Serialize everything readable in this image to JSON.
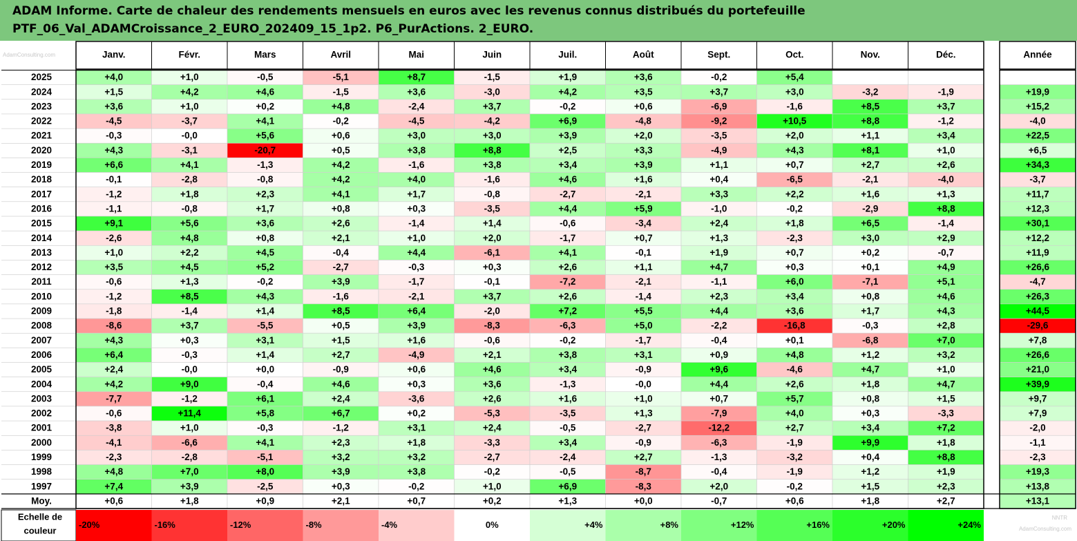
{
  "title": {
    "line1": "ADAM Informe. Carte de chaleur des rendements mensuels en euros avec les revenus connus distribués du portefeuille",
    "line2": "PTF_06_Val_ADAMCroissance_2_EURO_202409_15_1p2. P6_PurActions. 2_EURO."
  },
  "colors": {
    "title_bg": "#7dc77d",
    "negative_max": "#ff0000",
    "positive_max": "#00ff00",
    "neutral": "#ffffff"
  },
  "watermark": {
    "top_left": "AdamConsulting.com",
    "bottom_right_1": "NNTR",
    "bottom_right_2": "AdamConsulting.com"
  },
  "chart_data": {
    "type": "heatmap",
    "title": "ADAM Informe. Carte de chaleur des rendements mensuels en euros avec les revenus connus distribués du portefeuille PTF_06_Val_ADAMCroissance_2_EURO_202409_15_1p2. P6_PurActions. 2_EURO.",
    "columns": [
      "Janv.",
      "Févr.",
      "Mars",
      "Avril",
      "Mai",
      "Juin",
      "Juil.",
      "Août",
      "Sept.",
      "Oct.",
      "Nov.",
      "Déc."
    ],
    "year_column": "Année",
    "rows": [
      {
        "label": "2025",
        "months": [
          "+4,0",
          "+1,0",
          "-0,5",
          "-5,1",
          "+8,7",
          "-1,5",
          "+1,9",
          "+3,6",
          "-0,2",
          "+5,4",
          "",
          ""
        ],
        "year": ""
      },
      {
        "label": "2024",
        "months": [
          "+1,5",
          "+4,2",
          "+4,6",
          "-1,5",
          "+3,6",
          "-3,0",
          "+4,2",
          "+3,5",
          "+3,7",
          "+3,0",
          "-3,2",
          "-1,9"
        ],
        "year": "+19,9"
      },
      {
        "label": "2023",
        "months": [
          "+3,6",
          "+1,0",
          "+0,2",
          "+4,8",
          "-2,4",
          "+3,7",
          "-0,2",
          "+0,6",
          "-6,9",
          "-1,6",
          "+8,5",
          "+3,7"
        ],
        "year": "+15,2"
      },
      {
        "label": "2022",
        "months": [
          "-4,5",
          "-3,7",
          "+4,1",
          "-0,2",
          "-4,5",
          "-4,2",
          "+6,9",
          "-4,8",
          "-9,2",
          "+10,5",
          "+8,8",
          "-1,2"
        ],
        "year": "-4,0"
      },
      {
        "label": "2021",
        "months": [
          "-0,3",
          "-0,0",
          "+5,6",
          "+0,6",
          "+3,0",
          "+3,0",
          "+3,9",
          "+2,0",
          "-3,5",
          "+2,0",
          "+1,1",
          "+3,4"
        ],
        "year": "+22,5"
      },
      {
        "label": "2020",
        "months": [
          "+4,3",
          "-3,1",
          "-20,7",
          "+0,5",
          "+3,8",
          "+8,8",
          "+2,5",
          "+3,3",
          "-4,9",
          "+4,3",
          "+8,1",
          "+1,0"
        ],
        "year": "+6,5"
      },
      {
        "label": "2019",
        "months": [
          "+6,6",
          "+4,1",
          "-1,3",
          "+4,2",
          "-1,6",
          "+3,8",
          "+3,4",
          "+3,9",
          "+1,1",
          "+0,7",
          "+2,7",
          "+2,6"
        ],
        "year": "+34,3"
      },
      {
        "label": "2018",
        "months": [
          "-0,1",
          "-2,8",
          "-0,8",
          "+4,2",
          "+4,0",
          "-1,6",
          "+4,6",
          "+1,6",
          "+0,4",
          "-6,5",
          "-2,1",
          "-4,0"
        ],
        "year": "-3,7"
      },
      {
        "label": "2017",
        "months": [
          "-1,2",
          "+1,8",
          "+2,3",
          "+4,1",
          "+1,7",
          "-0,8",
          "-2,7",
          "-2,1",
          "+3,3",
          "+2,2",
          "+1,6",
          "+1,3"
        ],
        "year": "+11,7"
      },
      {
        "label": "2016",
        "months": [
          "-1,1",
          "-0,8",
          "+1,7",
          "+0,8",
          "+0,3",
          "-3,5",
          "+4,4",
          "+5,9",
          "-1,0",
          "-0,2",
          "-2,9",
          "+8,8"
        ],
        "year": "+12,3"
      },
      {
        "label": "2015",
        "months": [
          "+9,1",
          "+5,6",
          "+3,6",
          "+2,6",
          "-1,4",
          "+1,4",
          "-0,6",
          "-3,4",
          "+2,4",
          "+1,8",
          "+6,5",
          "-1,4"
        ],
        "year": "+30,1"
      },
      {
        "label": "2014",
        "months": [
          "-2,6",
          "+4,8",
          "+0,8",
          "+2,1",
          "+1,0",
          "+2,0",
          "-1,7",
          "+0,7",
          "+1,3",
          "-2,3",
          "+3,0",
          "+2,9"
        ],
        "year": "+12,2"
      },
      {
        "label": "2013",
        "months": [
          "+1,0",
          "+2,2",
          "+4,5",
          "-0,4",
          "+4,4",
          "-6,1",
          "+4,1",
          "-0,1",
          "+1,9",
          "+0,7",
          "+0,2",
          "-0,7"
        ],
        "year": "+11,9"
      },
      {
        "label": "2012",
        "months": [
          "+3,5",
          "+4,5",
          "+5,2",
          "-2,7",
          "-0,3",
          "+0,3",
          "+2,6",
          "+1,1",
          "+4,7",
          "+0,3",
          "+0,1",
          "+4,9"
        ],
        "year": "+26,6"
      },
      {
        "label": "2011",
        "months": [
          "-0,6",
          "+1,3",
          "-0,2",
          "+3,9",
          "-1,7",
          "-0,1",
          "-7,2",
          "-2,1",
          "-1,1",
          "+6,0",
          "-7,1",
          "+5,1"
        ],
        "year": "-4,7"
      },
      {
        "label": "2010",
        "months": [
          "-1,2",
          "+8,5",
          "+4,3",
          "-1,6",
          "-2,1",
          "+3,7",
          "+2,6",
          "-1,4",
          "+2,3",
          "+3,4",
          "+0,8",
          "+4,6"
        ],
        "year": "+26,3"
      },
      {
        "label": "2009",
        "months": [
          "-1,8",
          "-1,4",
          "+1,4",
          "+8,5",
          "+6,4",
          "-2,0",
          "+7,2",
          "+5,5",
          "+4,4",
          "+3,6",
          "+1,7",
          "+4,3"
        ],
        "year": "+44,5"
      },
      {
        "label": "2008",
        "months": [
          "-8,6",
          "+3,7",
          "-5,5",
          "+0,5",
          "+3,9",
          "-8,3",
          "-6,3",
          "+5,0",
          "-2,2",
          "-16,8",
          "-0,3",
          "+2,8"
        ],
        "year": "-29,6"
      },
      {
        "label": "2007",
        "months": [
          "+4,3",
          "+0,3",
          "+3,1",
          "+1,5",
          "+1,6",
          "-0,6",
          "-0,2",
          "-1,7",
          "-0,4",
          "+0,1",
          "-6,8",
          "+7,0"
        ],
        "year": "+7,8"
      },
      {
        "label": "2006",
        "months": [
          "+6,4",
          "-0,3",
          "+1,4",
          "+2,7",
          "-4,9",
          "+2,1",
          "+3,8",
          "+3,1",
          "+0,9",
          "+4,8",
          "+1,2",
          "+3,2"
        ],
        "year": "+26,6"
      },
      {
        "label": "2005",
        "months": [
          "+2,4",
          "-0,0",
          "+0,0",
          "-0,9",
          "+0,6",
          "+4,6",
          "+3,4",
          "-0,9",
          "+9,6",
          "-4,6",
          "+4,7",
          "+1,0"
        ],
        "year": "+21,0"
      },
      {
        "label": "2004",
        "months": [
          "+4,2",
          "+9,0",
          "-0,4",
          "+4,6",
          "+0,3",
          "+3,6",
          "-1,3",
          "-0,0",
          "+4,4",
          "+2,6",
          "+1,8",
          "+4,7"
        ],
        "year": "+39,9"
      },
      {
        "label": "2003",
        "months": [
          "-7,7",
          "-1,2",
          "+6,1",
          "+2,4",
          "-3,6",
          "+2,6",
          "+1,6",
          "+1,0",
          "+0,7",
          "+5,7",
          "+0,8",
          "+1,5"
        ],
        "year": "+9,7"
      },
      {
        "label": "2002",
        "months": [
          "-0,6",
          "+11,4",
          "+5,8",
          "+6,7",
          "+0,2",
          "-5,3",
          "-3,5",
          "+1,3",
          "-7,9",
          "+4,0",
          "+0,3",
          "-3,3"
        ],
        "year": "+7,9"
      },
      {
        "label": "2001",
        "months": [
          "-3,8",
          "+1,0",
          "-0,3",
          "-1,2",
          "+3,1",
          "+2,4",
          "-0,5",
          "-2,7",
          "-12,2",
          "+2,7",
          "+3,4",
          "+7,2"
        ],
        "year": "-2,0"
      },
      {
        "label": "2000",
        "months": [
          "-4,1",
          "-6,6",
          "+4,1",
          "+2,3",
          "+1,8",
          "-3,3",
          "+3,4",
          "-0,9",
          "-6,3",
          "-1,9",
          "+9,9",
          "+1,8"
        ],
        "year": "-1,1"
      },
      {
        "label": "1999",
        "months": [
          "-2,3",
          "-2,8",
          "-5,1",
          "+3,2",
          "+3,2",
          "-2,7",
          "-2,4",
          "+2,7",
          "-1,3",
          "-3,2",
          "+0,4",
          "+8,8"
        ],
        "year": "-2,3"
      },
      {
        "label": "1998",
        "months": [
          "+4,8",
          "+7,0",
          "+8,0",
          "+3,9",
          "+3,8",
          "-0,2",
          "-0,5",
          "-8,7",
          "-0,4",
          "-1,9",
          "+1,2",
          "+1,9"
        ],
        "year": "+19,3"
      },
      {
        "label": "1997",
        "months": [
          "+7,4",
          "+3,9",
          "-2,5",
          "+0,3",
          "-0,2",
          "+1,0",
          "+6,9",
          "-8,3",
          "+2,0",
          "-0,2",
          "+1,5",
          "+2,3"
        ],
        "year": "+13,8"
      }
    ],
    "average": {
      "label": "Moy.",
      "months": [
        "+0,6",
        "+1,8",
        "+0,9",
        "+2,1",
        "+0,7",
        "+0,2",
        "+1,3",
        "+0,0",
        "-0,7",
        "+0,6",
        "+1,8",
        "+2,7"
      ],
      "year": "+13,1"
    },
    "color_scale": {
      "label_line1": "Echelle de",
      "label_line2": "couleur",
      "stops": [
        "-20%",
        "-16%",
        "-12%",
        "-8%",
        "-4%",
        "0%",
        "+4%",
        "+8%",
        "+12%",
        "+16%",
        "+20%",
        "+24%"
      ],
      "stop_values": [
        -20,
        -16,
        -12,
        -8,
        -4,
        0,
        4,
        8,
        12,
        16,
        20,
        24
      ]
    }
  }
}
